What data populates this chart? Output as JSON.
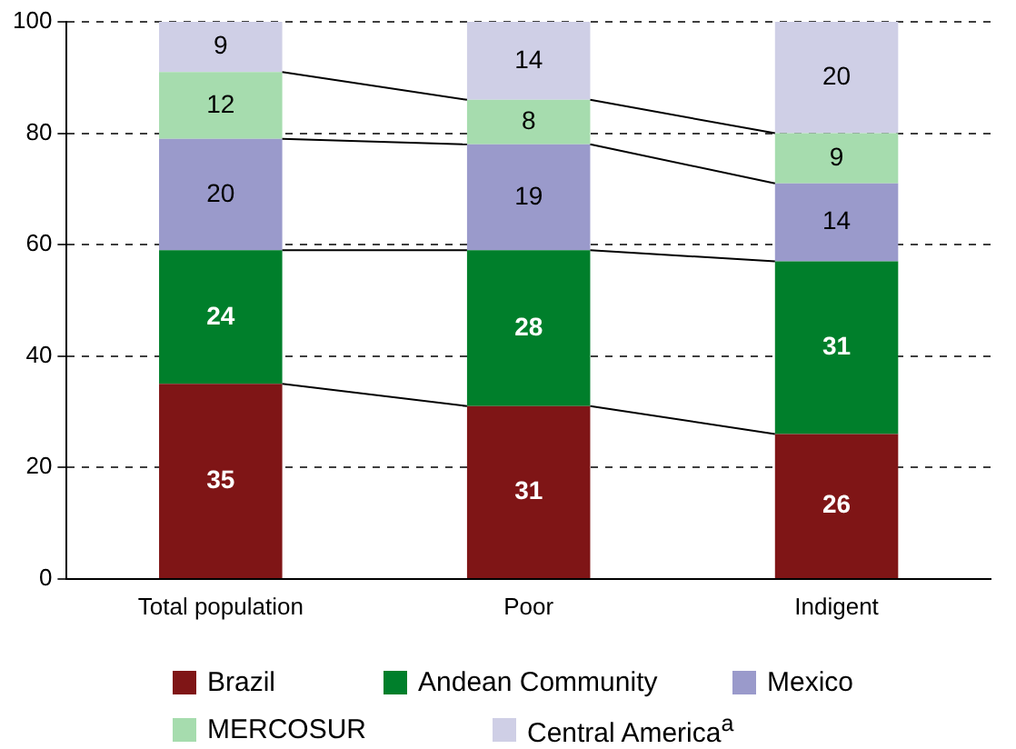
{
  "chart_data": {
    "type": "bar",
    "stacked": true,
    "categories": [
      "Total population",
      "Poor",
      "Indigent"
    ],
    "series": [
      {
        "name": "Brazil",
        "color": "#7f1516",
        "values": [
          35,
          31,
          26
        ]
      },
      {
        "name": "Andean Community",
        "color": "#007f2b",
        "values": [
          24,
          28,
          31
        ]
      },
      {
        "name": "Mexico",
        "color": "#9a9acb",
        "values": [
          20,
          19,
          14
        ]
      },
      {
        "name": "MERCOSUR",
        "color": "#a6dcae",
        "values": [
          12,
          8,
          9
        ]
      },
      {
        "name": "Central America$^{a}$",
        "color": "#cfcfe6",
        "values": [
          9,
          14,
          20
        ]
      }
    ],
    "ylim": [
      0,
      100
    ],
    "yticks": [
      0,
      20,
      40,
      60,
      80,
      100
    ],
    "grid": "y",
    "legend": "bottom",
    "data_labels": true
  }
}
